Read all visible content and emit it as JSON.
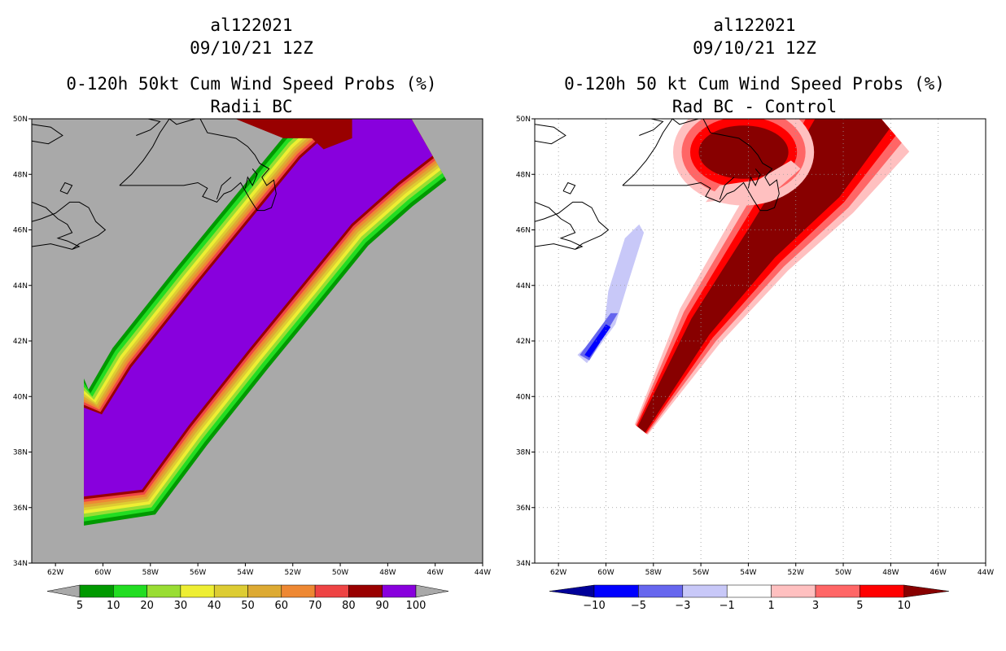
{
  "chart_data": [
    {
      "type": "contour-map",
      "storm_id": "al122021",
      "date": "09/10/21 12Z",
      "title": "0-120h 50kt Cum Wind Speed Probs (%)",
      "subtitle": "Radii BC",
      "map_background": "#a9a9a9",
      "x_range": [
        -63,
        -44
      ],
      "y_range": [
        34,
        50
      ],
      "x_ticks": [
        -62,
        -60,
        -58,
        -56,
        -54,
        -52,
        -50,
        -48,
        -46,
        -44
      ],
      "x_tick_labels": [
        "62W",
        "60W",
        "58W",
        "56W",
        "54W",
        "52W",
        "50W",
        "48W",
        "46W",
        "44W"
      ],
      "y_ticks": [
        34,
        36,
        38,
        40,
        42,
        44,
        46,
        48,
        50
      ],
      "y_tick_labels": [
        "34N",
        "36N",
        "38N",
        "40N",
        "42N",
        "44N",
        "46N",
        "48N",
        "50N"
      ],
      "grid": false,
      "colorbar": {
        "labels": [
          "5",
          "10",
          "20",
          "30",
          "40",
          "50",
          "60",
          "70",
          "80",
          "90",
          "100"
        ],
        "colors": [
          "#009900",
          "#22dd22",
          "#99dd33",
          "#eeee33",
          "#ddcc33",
          "#ddaa33",
          "#ee8833",
          "#ee4444",
          "#990000",
          "#8800dd"
        ],
        "extend_color": "#a9a9a9"
      },
      "swath": {
        "track": [
          [
            -60.8,
            38.0
          ],
          [
            -59.2,
            38.0
          ],
          [
            -57.6,
            40.0
          ],
          [
            -55.0,
            42.8
          ],
          [
            -52.7,
            45.2
          ],
          [
            -50.6,
            47.4
          ],
          [
            -48.5,
            49.0
          ],
          [
            -47.0,
            50.0
          ]
        ],
        "core_max_lat": 49.3,
        "outer_edges_deg": [
          1.15,
          1.0,
          0.85,
          0.72,
          0.6,
          0.5,
          0.4,
          0.3,
          0.2,
          0.1
        ]
      }
    },
    {
      "type": "contour-map",
      "storm_id": "al122021",
      "date": "09/10/21 12Z",
      "title": "0-120h 50 kt Cum Wind Speed Probs (%)",
      "subtitle": "Rad BC - Control",
      "map_background": "#ffffff",
      "x_range": [
        -63,
        -44
      ],
      "y_range": [
        34,
        50
      ],
      "x_ticks": [
        -62,
        -60,
        -58,
        -56,
        -54,
        -52,
        -50,
        -48,
        -46,
        -44
      ],
      "x_tick_labels": [
        "62W",
        "60W",
        "58W",
        "56W",
        "54W",
        "52W",
        "50W",
        "48W",
        "46W",
        "44W"
      ],
      "y_ticks": [
        34,
        36,
        38,
        40,
        42,
        44,
        46,
        48,
        50
      ],
      "y_tick_labels": [
        "34N",
        "36N",
        "38N",
        "40N",
        "42N",
        "44N",
        "46N",
        "48N",
        "50N"
      ],
      "grid": true,
      "colorbar": {
        "labels": [
          "-10",
          "-5",
          "-3",
          "-1",
          "1",
          "3",
          "5",
          "10"
        ],
        "colors": [
          "#000099",
          "#0000ff",
          "#6666ee",
          "#c8c8f8",
          "#ffffff",
          "#ffc0c0",
          "#ff6666",
          "#ff0000",
          "#880000"
        ]
      },
      "difference_field": {
        "positive_wedge": [
          [
            -58.5,
            38.8
          ],
          [
            -56.0,
            42.5
          ],
          [
            -53.4,
            45.5
          ],
          [
            -51.0,
            48.0
          ],
          [
            -49.0,
            50.0
          ]
        ],
        "positive_widths": {
          "1": [
            0.35,
            1.1,
            1.6,
            2.2,
            2.8
          ],
          "3": [
            0.3,
            0.9,
            1.35,
            1.9,
            2.3
          ],
          "5": [
            0.25,
            0.7,
            1.1,
            1.6,
            1.9
          ],
          "10": [
            0.2,
            0.5,
            0.8,
            1.3,
            1.5
          ]
        },
        "northern_lobe_center": [
          -54.2,
          48.8
        ],
        "negative_strip": [
          [
            -61.0,
            41.4
          ],
          [
            -60.0,
            42.6
          ],
          [
            -59.6,
            44.0
          ],
          [
            -58.8,
            46.0
          ]
        ]
      },
      "annotation": ""
    }
  ]
}
